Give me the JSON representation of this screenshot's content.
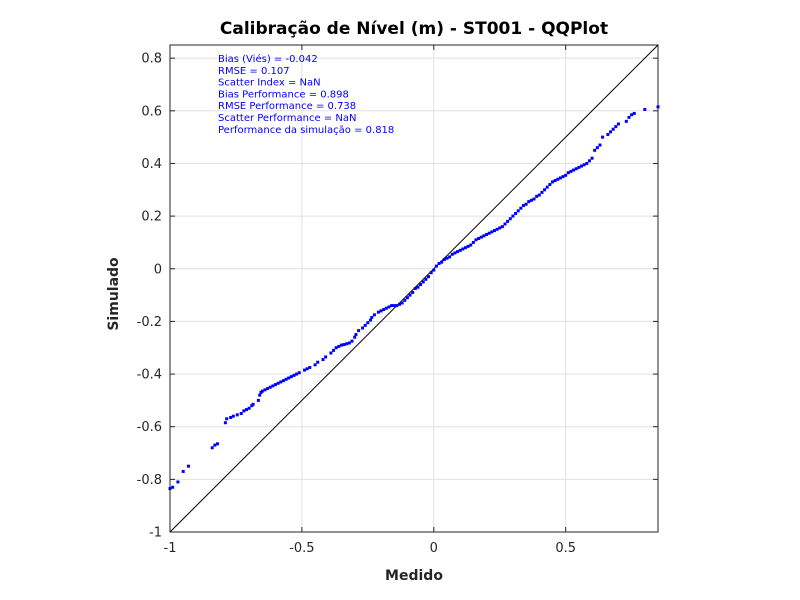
{
  "chart_data": {
    "type": "scatter",
    "title": "Calibração de Nível (m) - ST001 - QQPlot",
    "xlabel": "Medido",
    "ylabel": "Simulado",
    "xlim": [
      -1,
      0.85
    ],
    "ylim": [
      -1,
      0.85
    ],
    "xticks": [
      -1,
      -0.5,
      0,
      0.5
    ],
    "yticks": [
      -1,
      -0.8,
      -0.6,
      -0.4,
      -0.2,
      0,
      0.2,
      0.4,
      0.6,
      0.8
    ],
    "grid": true,
    "reference_line": {
      "from": [
        -1,
        -1
      ],
      "to": [
        0.85,
        0.85
      ]
    },
    "annotations": [
      "Bias (Viés) = -0.042",
      "RMSE = 0.107",
      "Scatter Index = NaN",
      "Bias Performance = 0.898",
      "RMSE Performance = 0.738",
      "Scatter Performance = NaN",
      "Performance da simulação = 0.818"
    ],
    "colors": {
      "points": "#0000ff",
      "reference": "#000000",
      "grid": "#e0e0e0"
    },
    "points": [
      [
        -1.0,
        -0.835
      ],
      [
        -0.99,
        -0.83
      ],
      [
        -0.97,
        -0.81
      ],
      [
        -0.95,
        -0.77
      ],
      [
        -0.93,
        -0.75
      ],
      [
        -0.84,
        -0.68
      ],
      [
        -0.83,
        -0.67
      ],
      [
        -0.82,
        -0.665
      ],
      [
        -0.79,
        -0.585
      ],
      [
        -0.785,
        -0.57
      ],
      [
        -0.77,
        -0.565
      ],
      [
        -0.76,
        -0.56
      ],
      [
        -0.745,
        -0.555
      ],
      [
        -0.73,
        -0.55
      ],
      [
        -0.72,
        -0.54
      ],
      [
        -0.71,
        -0.535
      ],
      [
        -0.7,
        -0.53
      ],
      [
        -0.69,
        -0.52
      ],
      [
        -0.685,
        -0.515
      ],
      [
        -0.665,
        -0.5
      ],
      [
        -0.66,
        -0.48
      ],
      [
        -0.655,
        -0.47
      ],
      [
        -0.65,
        -0.465
      ],
      [
        -0.64,
        -0.46
      ],
      [
        -0.63,
        -0.455
      ],
      [
        -0.62,
        -0.45
      ],
      [
        -0.61,
        -0.445
      ],
      [
        -0.6,
        -0.44
      ],
      [
        -0.59,
        -0.435
      ],
      [
        -0.58,
        -0.43
      ],
      [
        -0.57,
        -0.425
      ],
      [
        -0.56,
        -0.42
      ],
      [
        -0.55,
        -0.415
      ],
      [
        -0.54,
        -0.41
      ],
      [
        -0.53,
        -0.405
      ],
      [
        -0.52,
        -0.4
      ],
      [
        -0.51,
        -0.395
      ],
      [
        -0.49,
        -0.385
      ],
      [
        -0.48,
        -0.38
      ],
      [
        -0.47,
        -0.375
      ],
      [
        -0.45,
        -0.365
      ],
      [
        -0.44,
        -0.355
      ],
      [
        -0.42,
        -0.345
      ],
      [
        -0.41,
        -0.335
      ],
      [
        -0.39,
        -0.32
      ],
      [
        -0.38,
        -0.31
      ],
      [
        -0.37,
        -0.3
      ],
      [
        -0.36,
        -0.295
      ],
      [
        -0.35,
        -0.29
      ],
      [
        -0.34,
        -0.288
      ],
      [
        -0.33,
        -0.285
      ],
      [
        -0.32,
        -0.282
      ],
      [
        -0.31,
        -0.275
      ],
      [
        -0.3,
        -0.26
      ],
      [
        -0.295,
        -0.25
      ],
      [
        -0.285,
        -0.235
      ],
      [
        -0.27,
        -0.225
      ],
      [
        -0.26,
        -0.215
      ],
      [
        -0.25,
        -0.205
      ],
      [
        -0.24,
        -0.195
      ],
      [
        -0.235,
        -0.185
      ],
      [
        -0.225,
        -0.175
      ],
      [
        -0.21,
        -0.165
      ],
      [
        -0.2,
        -0.16
      ],
      [
        -0.19,
        -0.155
      ],
      [
        -0.18,
        -0.15
      ],
      [
        -0.17,
        -0.145
      ],
      [
        -0.16,
        -0.14
      ],
      [
        -0.15,
        -0.14
      ],
      [
        -0.14,
        -0.14
      ],
      [
        -0.13,
        -0.135
      ],
      [
        -0.12,
        -0.13
      ],
      [
        -0.11,
        -0.12
      ],
      [
        -0.1,
        -0.11
      ],
      [
        -0.09,
        -0.1
      ],
      [
        -0.08,
        -0.09
      ],
      [
        -0.07,
        -0.075
      ],
      [
        -0.06,
        -0.07
      ],
      [
        -0.05,
        -0.06
      ],
      [
        -0.04,
        -0.05
      ],
      [
        -0.03,
        -0.04
      ],
      [
        -0.02,
        -0.03
      ],
      [
        -0.01,
        -0.015
      ],
      [
        0.0,
        -0.005
      ],
      [
        0.01,
        0.01
      ],
      [
        0.02,
        0.02
      ],
      [
        0.03,
        0.025
      ],
      [
        0.04,
        0.035
      ],
      [
        0.05,
        0.04
      ],
      [
        0.06,
        0.045
      ],
      [
        0.07,
        0.055
      ],
      [
        0.08,
        0.06
      ],
      [
        0.09,
        0.065
      ],
      [
        0.1,
        0.07
      ],
      [
        0.11,
        0.075
      ],
      [
        0.12,
        0.08
      ],
      [
        0.13,
        0.085
      ],
      [
        0.14,
        0.09
      ],
      [
        0.15,
        0.1
      ],
      [
        0.16,
        0.11
      ],
      [
        0.17,
        0.115
      ],
      [
        0.18,
        0.12
      ],
      [
        0.19,
        0.125
      ],
      [
        0.2,
        0.13
      ],
      [
        0.21,
        0.135
      ],
      [
        0.22,
        0.14
      ],
      [
        0.23,
        0.145
      ],
      [
        0.24,
        0.15
      ],
      [
        0.25,
        0.155
      ],
      [
        0.26,
        0.16
      ],
      [
        0.27,
        0.17
      ],
      [
        0.28,
        0.18
      ],
      [
        0.29,
        0.19
      ],
      [
        0.3,
        0.2
      ],
      [
        0.31,
        0.21
      ],
      [
        0.32,
        0.22
      ],
      [
        0.33,
        0.23
      ],
      [
        0.34,
        0.24
      ],
      [
        0.35,
        0.245
      ],
      [
        0.36,
        0.255
      ],
      [
        0.37,
        0.26
      ],
      [
        0.38,
        0.265
      ],
      [
        0.39,
        0.275
      ],
      [
        0.4,
        0.28
      ],
      [
        0.41,
        0.29
      ],
      [
        0.42,
        0.3
      ],
      [
        0.43,
        0.31
      ],
      [
        0.44,
        0.32
      ],
      [
        0.45,
        0.33
      ],
      [
        0.46,
        0.335
      ],
      [
        0.47,
        0.34
      ],
      [
        0.48,
        0.345
      ],
      [
        0.49,
        0.35
      ],
      [
        0.5,
        0.355
      ],
      [
        0.51,
        0.365
      ],
      [
        0.52,
        0.37
      ],
      [
        0.53,
        0.375
      ],
      [
        0.54,
        0.38
      ],
      [
        0.55,
        0.385
      ],
      [
        0.56,
        0.39
      ],
      [
        0.57,
        0.395
      ],
      [
        0.58,
        0.4
      ],
      [
        0.59,
        0.41
      ],
      [
        0.6,
        0.42
      ],
      [
        0.61,
        0.45
      ],
      [
        0.62,
        0.46
      ],
      [
        0.63,
        0.47
      ],
      [
        0.64,
        0.5
      ],
      [
        0.66,
        0.51
      ],
      [
        0.67,
        0.52
      ],
      [
        0.68,
        0.53
      ],
      [
        0.69,
        0.54
      ],
      [
        0.7,
        0.55
      ],
      [
        0.73,
        0.56
      ],
      [
        0.74,
        0.575
      ],
      [
        0.75,
        0.585
      ],
      [
        0.76,
        0.59
      ],
      [
        0.8,
        0.605
      ],
      [
        0.85,
        0.615
      ]
    ]
  }
}
